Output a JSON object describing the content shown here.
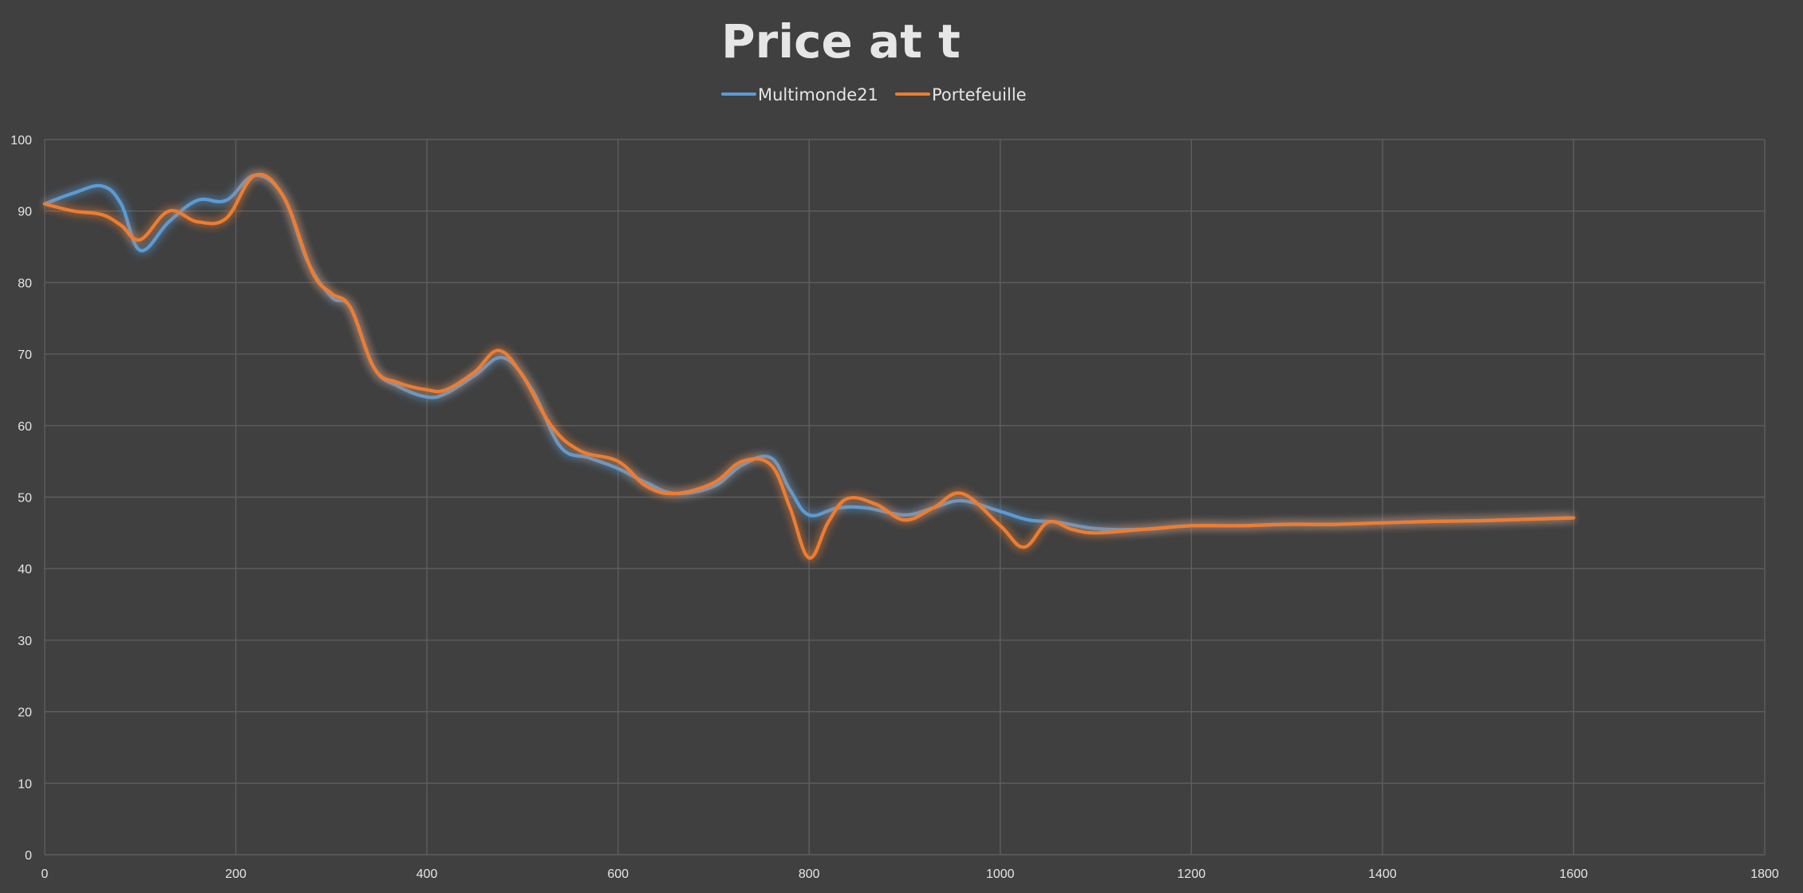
{
  "colors": {
    "background": "#404040",
    "gridline": "#5e5e5e",
    "text": "#e6e6e6",
    "series_blue": "#5b9bd5",
    "series_orange": "#ed7d31"
  },
  "chart_data": {
    "type": "line",
    "title": "Price at t",
    "xlabel": "",
    "ylabel": "",
    "xlim": [
      0,
      1800
    ],
    "ylim": [
      0,
      100
    ],
    "x_ticks": [
      "0",
      "200",
      "400",
      "600",
      "800",
      "1000",
      "1200",
      "1400",
      "1600",
      "1800"
    ],
    "y_ticks": [
      "0",
      "10",
      "20",
      "30",
      "40",
      "50",
      "60",
      "70",
      "80",
      "90",
      "100"
    ],
    "grid": true,
    "legend_position": "top-center",
    "series": [
      {
        "name": "Multimonde21",
        "color": "#5b9bd5",
        "points": [
          [
            0,
            91
          ],
          [
            30,
            92.5
          ],
          [
            60,
            93.5
          ],
          [
            80,
            91
          ],
          [
            100,
            84.5
          ],
          [
            130,
            88.5
          ],
          [
            160,
            91.5
          ],
          [
            190,
            91.5
          ],
          [
            220,
            95
          ],
          [
            250,
            92
          ],
          [
            275,
            83
          ],
          [
            300,
            78
          ],
          [
            320,
            76.5
          ],
          [
            345,
            68
          ],
          [
            370,
            65.5
          ],
          [
            400,
            64
          ],
          [
            420,
            64.5
          ],
          [
            450,
            67
          ],
          [
            480,
            69.5
          ],
          [
            510,
            65
          ],
          [
            540,
            57
          ],
          [
            570,
            55.5
          ],
          [
            600,
            54
          ],
          [
            630,
            52
          ],
          [
            660,
            50.5
          ],
          [
            700,
            51.5
          ],
          [
            730,
            54.5
          ],
          [
            760,
            55.5
          ],
          [
            780,
            51
          ],
          [
            800,
            47.5
          ],
          [
            830,
            48.5
          ],
          [
            860,
            48.5
          ],
          [
            900,
            47.5
          ],
          [
            930,
            48.5
          ],
          [
            960,
            49.5
          ],
          [
            1000,
            48
          ],
          [
            1030,
            46.8
          ],
          [
            1060,
            46.5
          ],
          [
            1100,
            45.6
          ],
          [
            1150,
            45.5
          ],
          [
            1200,
            46
          ],
          [
            1250,
            46
          ],
          [
            1300,
            46.2
          ],
          [
            1350,
            46.2
          ],
          [
            1400,
            46.4
          ],
          [
            1450,
            46.6
          ],
          [
            1500,
            46.7
          ],
          [
            1550,
            46.9
          ],
          [
            1600,
            47.1
          ]
        ]
      },
      {
        "name": "Portefeuille",
        "color": "#ed7d31",
        "points": [
          [
            0,
            91
          ],
          [
            30,
            90
          ],
          [
            60,
            89.5
          ],
          [
            80,
            88
          ],
          [
            100,
            86
          ],
          [
            130,
            90
          ],
          [
            160,
            88.5
          ],
          [
            190,
            89
          ],
          [
            220,
            95
          ],
          [
            250,
            92
          ],
          [
            280,
            81.5
          ],
          [
            300,
            78.5
          ],
          [
            320,
            76.5
          ],
          [
            345,
            68
          ],
          [
            370,
            66
          ],
          [
            400,
            65
          ],
          [
            420,
            65
          ],
          [
            450,
            67.5
          ],
          [
            475,
            70.5
          ],
          [
            500,
            67
          ],
          [
            530,
            60
          ],
          [
            560,
            56.5
          ],
          [
            600,
            55
          ],
          [
            630,
            51.5
          ],
          [
            660,
            50.5
          ],
          [
            700,
            52
          ],
          [
            730,
            55
          ],
          [
            760,
            54.5
          ],
          [
            780,
            48.5
          ],
          [
            800,
            41.5
          ],
          [
            820,
            46.5
          ],
          [
            840,
            49.8
          ],
          [
            870,
            49
          ],
          [
            900,
            46.8
          ],
          [
            930,
            48.5
          ],
          [
            960,
            50.5
          ],
          [
            1000,
            46
          ],
          [
            1025,
            43
          ],
          [
            1050,
            46.5
          ],
          [
            1075,
            45.5
          ],
          [
            1100,
            45
          ],
          [
            1150,
            45.5
          ],
          [
            1200,
            46
          ],
          [
            1250,
            46
          ],
          [
            1300,
            46.2
          ],
          [
            1350,
            46.2
          ],
          [
            1400,
            46.4
          ],
          [
            1450,
            46.6
          ],
          [
            1500,
            46.7
          ],
          [
            1550,
            46.9
          ],
          [
            1600,
            47.1
          ]
        ]
      }
    ]
  }
}
